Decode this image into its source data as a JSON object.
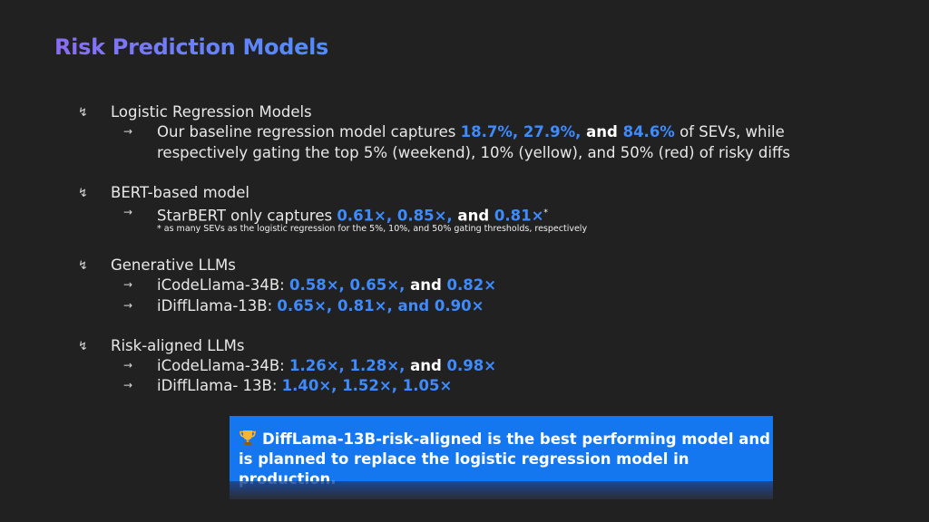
{
  "title": "Risk Prediction Models",
  "bullet_l1": "↯",
  "bullet_l2": "→",
  "colors": {
    "highlight": "#3d8bff",
    "callout_bg": "#1577f0",
    "background": "#212122"
  },
  "sections": [
    {
      "heading": "Logistic Regression Models",
      "line1_pre": "Our baseline regression model captures ",
      "line1_vals": "18.7%, 27.9%,",
      "line1_and": " and ",
      "line1_val3": "84.6%",
      "line1_post": " of SEVs, while",
      "line2": "respectively gating the top 5% (weekend), 10% (yellow), and 50% (red) of risky diffs"
    },
    {
      "heading": "BERT-based model",
      "pre": "StarBERT only captures ",
      "vals": "0.61×, 0.85×,",
      "and": " and ",
      "val3": "0.81×",
      "sup": "*",
      "footnote": "*  as many SEVs as the logistic regression for the 5%, 10%, and 50% gating thresholds, respectively"
    },
    {
      "heading": "Generative LLMs",
      "items": [
        {
          "label": "iCodeLlama-34B: ",
          "vals": "0.58×, 0.65×,",
          "and": " and ",
          "val3": "0.82×"
        },
        {
          "label": "iDiffLlama-13B: ",
          "vals": "0.65×, 0.81×, and 0.90×"
        }
      ]
    },
    {
      "heading": "Risk-aligned LLMs",
      "items": [
        {
          "label": "iCodeLlama-34B: ",
          "vals": "1.26×, 1.28×,",
          "and": " and ",
          "val3": "0.98×"
        },
        {
          "label": "iDiffLlama- 13B: ",
          "vals": "1.40×, 1.52×, 1.05×"
        }
      ]
    }
  ],
  "callout": {
    "icon": "trophy-icon",
    "line1": "DiffLama-13B-risk-aligned is the best performing model and",
    "line2": "is planned to replace the logistic regression model in production."
  }
}
